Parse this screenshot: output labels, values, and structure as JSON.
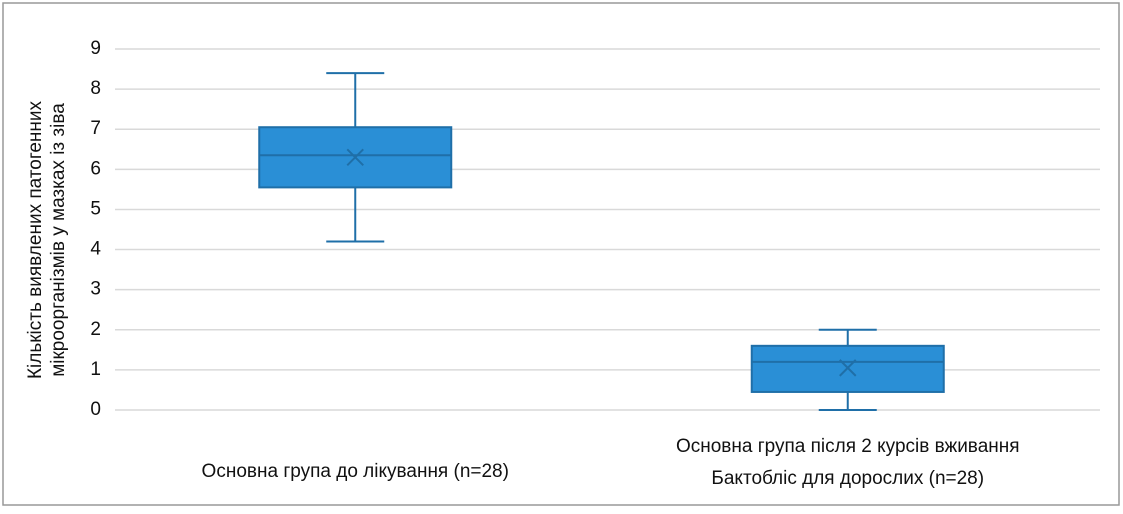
{
  "chart_data": {
    "type": "box",
    "y_label": [
      "Кількість виявлених патогенних",
      "мікроорганізмів у мазках із зіва"
    ],
    "categories": [
      [
        "Основна група до лікування (n=28)"
      ],
      [
        "Основна група після 2 курсів вживання",
        "Бактобліс для дорослих (n=28)"
      ]
    ],
    "boxes": [
      {
        "min": 4.2,
        "q1": 5.55,
        "median": 6.35,
        "q3": 7.05,
        "max": 8.4,
        "mean": 6.3
      },
      {
        "min": 0,
        "q1": 0.45,
        "median": 1.2,
        "q3": 1.6,
        "max": 2,
        "mean": 1.05
      }
    ],
    "color": "#2a8fd6",
    "ylim": [
      0,
      9
    ],
    "yticks": [
      0,
      1,
      2,
      3,
      4,
      5,
      6,
      7,
      8,
      9
    ],
    "grid": true
  }
}
